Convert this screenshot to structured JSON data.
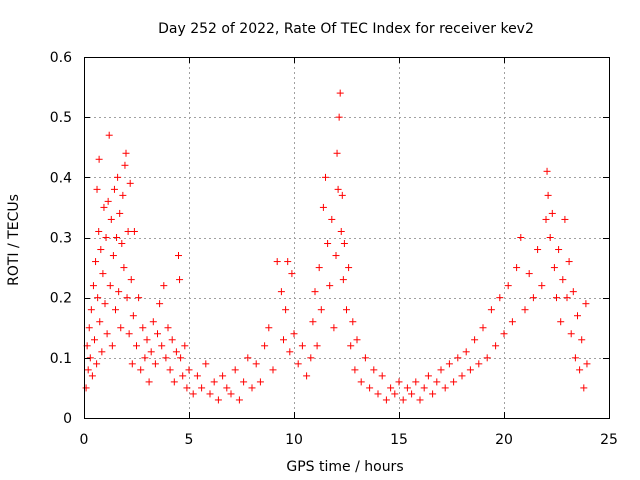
{
  "chart_data": {
    "type": "scatter",
    "title": "Day 252 of 2022, Rate Of TEC Index for receiver kev2",
    "xlabel": "GPS time / hours",
    "ylabel": "ROTI / TECUs",
    "xlim": [
      0,
      25
    ],
    "ylim": [
      0,
      0.6
    ],
    "x_ticks": [
      0,
      5,
      10,
      15,
      20,
      25
    ],
    "x_tick_labels": [
      "0",
      "5",
      "10",
      "15",
      "20",
      "25"
    ],
    "y_ticks": [
      0,
      0.1,
      0.2,
      0.3,
      0.4,
      0.5,
      0.6
    ],
    "y_tick_labels": [
      "0",
      "0.1",
      "0.2",
      "0.3",
      "0.4",
      "0.5",
      "0.6"
    ],
    "grid": true,
    "marker": "plus",
    "color": "#ff0000",
    "series": [
      {
        "name": "ROTI",
        "points": [
          [
            0.1,
            0.05
          ],
          [
            0.15,
            0.12
          ],
          [
            0.2,
            0.08
          ],
          [
            0.25,
            0.15
          ],
          [
            0.3,
            0.1
          ],
          [
            0.35,
            0.18
          ],
          [
            0.4,
            0.07
          ],
          [
            0.45,
            0.22
          ],
          [
            0.5,
            0.13
          ],
          [
            0.55,
            0.26
          ],
          [
            0.6,
            0.09
          ],
          [
            0.62,
            0.38
          ],
          [
            0.65,
            0.2
          ],
          [
            0.7,
            0.31
          ],
          [
            0.72,
            0.43
          ],
          [
            0.75,
            0.16
          ],
          [
            0.8,
            0.28
          ],
          [
            0.85,
            0.11
          ],
          [
            0.9,
            0.24
          ],
          [
            0.95,
            0.35
          ],
          [
            1.0,
            0.19
          ],
          [
            1.05,
            0.3
          ],
          [
            1.1,
            0.14
          ],
          [
            1.15,
            0.36
          ],
          [
            1.2,
            0.47
          ],
          [
            1.25,
            0.22
          ],
          [
            1.3,
            0.33
          ],
          [
            1.35,
            0.12
          ],
          [
            1.4,
            0.27
          ],
          [
            1.45,
            0.38
          ],
          [
            1.5,
            0.18
          ],
          [
            1.55,
            0.3
          ],
          [
            1.6,
            0.4
          ],
          [
            1.65,
            0.21
          ],
          [
            1.7,
            0.34
          ],
          [
            1.75,
            0.15
          ],
          [
            1.8,
            0.29
          ],
          [
            1.85,
            0.37
          ],
          [
            1.9,
            0.25
          ],
          [
            1.95,
            0.42
          ],
          [
            2.0,
            0.44
          ],
          [
            2.05,
            0.2
          ],
          [
            2.1,
            0.31
          ],
          [
            2.15,
            0.14
          ],
          [
            2.2,
            0.39
          ],
          [
            2.25,
            0.23
          ],
          [
            2.3,
            0.09
          ],
          [
            2.35,
            0.17
          ],
          [
            2.4,
            0.31
          ],
          [
            2.5,
            0.12
          ],
          [
            2.6,
            0.2
          ],
          [
            2.7,
            0.08
          ],
          [
            2.8,
            0.15
          ],
          [
            2.9,
            0.1
          ],
          [
            3.0,
            0.13
          ],
          [
            3.1,
            0.06
          ],
          [
            3.2,
            0.11
          ],
          [
            3.3,
            0.16
          ],
          [
            3.4,
            0.09
          ],
          [
            3.5,
            0.14
          ],
          [
            3.6,
            0.19
          ],
          [
            3.7,
            0.12
          ],
          [
            3.8,
            0.22
          ],
          [
            3.9,
            0.1
          ],
          [
            4.0,
            0.15
          ],
          [
            4.1,
            0.08
          ],
          [
            4.2,
            0.13
          ],
          [
            4.3,
            0.06
          ],
          [
            4.4,
            0.11
          ],
          [
            4.5,
            0.27
          ],
          [
            4.55,
            0.23
          ],
          [
            4.6,
            0.1
          ],
          [
            4.7,
            0.07
          ],
          [
            4.8,
            0.12
          ],
          [
            4.9,
            0.05
          ],
          [
            5.0,
            0.08
          ],
          [
            5.2,
            0.04
          ],
          [
            5.4,
            0.07
          ],
          [
            5.6,
            0.05
          ],
          [
            5.8,
            0.09
          ],
          [
            6.0,
            0.04
          ],
          [
            6.2,
            0.06
          ],
          [
            6.4,
            0.03
          ],
          [
            6.6,
            0.07
          ],
          [
            6.8,
            0.05
          ],
          [
            7.0,
            0.04
          ],
          [
            7.2,
            0.08
          ],
          [
            7.4,
            0.03
          ],
          [
            7.6,
            0.06
          ],
          [
            7.8,
            0.1
          ],
          [
            8.0,
            0.05
          ],
          [
            8.2,
            0.09
          ],
          [
            8.4,
            0.06
          ],
          [
            8.6,
            0.12
          ],
          [
            8.8,
            0.15
          ],
          [
            9.0,
            0.08
          ],
          [
            9.2,
            0.26
          ],
          [
            9.4,
            0.21
          ],
          [
            9.5,
            0.13
          ],
          [
            9.6,
            0.18
          ],
          [
            9.7,
            0.26
          ],
          [
            9.8,
            0.11
          ],
          [
            9.9,
            0.24
          ],
          [
            10.0,
            0.14
          ],
          [
            10.2,
            0.09
          ],
          [
            10.4,
            0.12
          ],
          [
            10.6,
            0.07
          ],
          [
            10.8,
            0.1
          ],
          [
            10.9,
            0.16
          ],
          [
            11.0,
            0.21
          ],
          [
            11.1,
            0.12
          ],
          [
            11.2,
            0.25
          ],
          [
            11.3,
            0.18
          ],
          [
            11.4,
            0.35
          ],
          [
            11.5,
            0.4
          ],
          [
            11.6,
            0.29
          ],
          [
            11.7,
            0.22
          ],
          [
            11.8,
            0.33
          ],
          [
            11.9,
            0.15
          ],
          [
            12.0,
            0.27
          ],
          [
            12.05,
            0.44
          ],
          [
            12.1,
            0.38
          ],
          [
            12.15,
            0.5
          ],
          [
            12.2,
            0.54
          ],
          [
            12.25,
            0.31
          ],
          [
            12.3,
            0.37
          ],
          [
            12.35,
            0.23
          ],
          [
            12.4,
            0.29
          ],
          [
            12.5,
            0.18
          ],
          [
            12.6,
            0.25
          ],
          [
            12.7,
            0.12
          ],
          [
            12.8,
            0.16
          ],
          [
            12.9,
            0.08
          ],
          [
            13.0,
            0.13
          ],
          [
            13.2,
            0.06
          ],
          [
            13.4,
            0.1
          ],
          [
            13.6,
            0.05
          ],
          [
            13.8,
            0.08
          ],
          [
            14.0,
            0.04
          ],
          [
            14.2,
            0.07
          ],
          [
            14.4,
            0.03
          ],
          [
            14.6,
            0.05
          ],
          [
            14.8,
            0.04
          ],
          [
            15.0,
            0.06
          ],
          [
            15.2,
            0.03
          ],
          [
            15.4,
            0.05
          ],
          [
            15.6,
            0.04
          ],
          [
            15.8,
            0.06
          ],
          [
            16.0,
            0.03
          ],
          [
            16.2,
            0.05
          ],
          [
            16.4,
            0.07
          ],
          [
            16.6,
            0.04
          ],
          [
            16.8,
            0.06
          ],
          [
            17.0,
            0.08
          ],
          [
            17.2,
            0.05
          ],
          [
            17.4,
            0.09
          ],
          [
            17.6,
            0.06
          ],
          [
            17.8,
            0.1
          ],
          [
            18.0,
            0.07
          ],
          [
            18.2,
            0.11
          ],
          [
            18.4,
            0.08
          ],
          [
            18.6,
            0.13
          ],
          [
            18.8,
            0.09
          ],
          [
            19.0,
            0.15
          ],
          [
            19.2,
            0.1
          ],
          [
            19.4,
            0.18
          ],
          [
            19.6,
            0.12
          ],
          [
            19.8,
            0.2
          ],
          [
            20.0,
            0.14
          ],
          [
            20.2,
            0.22
          ],
          [
            20.4,
            0.16
          ],
          [
            20.6,
            0.25
          ],
          [
            20.8,
            0.3
          ],
          [
            21.0,
            0.18
          ],
          [
            21.2,
            0.24
          ],
          [
            21.4,
            0.2
          ],
          [
            21.6,
            0.28
          ],
          [
            21.8,
            0.22
          ],
          [
            22.0,
            0.33
          ],
          [
            22.05,
            0.41
          ],
          [
            22.1,
            0.37
          ],
          [
            22.2,
            0.3
          ],
          [
            22.3,
            0.34
          ],
          [
            22.4,
            0.25
          ],
          [
            22.5,
            0.2
          ],
          [
            22.6,
            0.28
          ],
          [
            22.7,
            0.16
          ],
          [
            22.8,
            0.23
          ],
          [
            22.9,
            0.33
          ],
          [
            23.0,
            0.2
          ],
          [
            23.1,
            0.26
          ],
          [
            23.2,
            0.14
          ],
          [
            23.3,
            0.21
          ],
          [
            23.4,
            0.1
          ],
          [
            23.5,
            0.17
          ],
          [
            23.6,
            0.08
          ],
          [
            23.7,
            0.13
          ],
          [
            23.8,
            0.05
          ],
          [
            23.9,
            0.19
          ],
          [
            23.95,
            0.09
          ]
        ]
      }
    ]
  }
}
